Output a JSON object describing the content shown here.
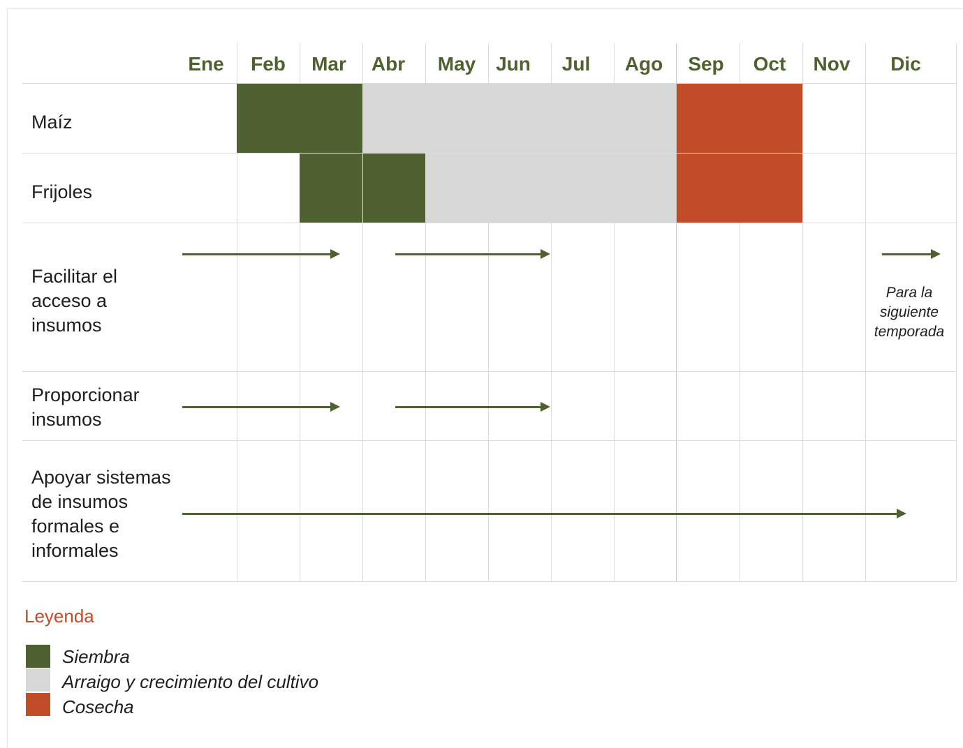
{
  "colors": {
    "siembra": "#4f6130",
    "crecimiento": "#d9d8d8",
    "cosecha": "#c04c28",
    "arrow": "#4f6130",
    "month_text": "#4f6130",
    "legend_title": "#c04c28"
  },
  "months": [
    "Ene",
    "Feb",
    "Mar",
    "Abr",
    "May",
    "Jun",
    "Jul",
    "Ago",
    "Sep",
    "Oct",
    "Nov",
    "Dic"
  ],
  "rows": [
    {
      "label": "Maíz"
    },
    {
      "label": "Frijoles"
    },
    {
      "label": "Facilitar el acceso a insumos"
    },
    {
      "label": "Proporcionar insumos"
    },
    {
      "label": "Apoyar sistemas de insumos formales e informales"
    }
  ],
  "crop_schedule": {
    "maiz": {
      "siembra": [
        "Feb",
        "Mar"
      ],
      "crecimiento": [
        "Abr",
        "May",
        "Jun",
        "Jul",
        "Ago"
      ],
      "cosecha": [
        "Sep",
        "Oct"
      ]
    },
    "frijoles": {
      "siembra": [
        "Mar",
        "Abr"
      ],
      "crecimiento": [
        "May",
        "Jun",
        "Jul",
        "Ago"
      ],
      "cosecha": [
        "Sep",
        "Oct"
      ]
    }
  },
  "note": "Para la siguiente temporada",
  "legend": {
    "title": "Leyenda",
    "items": [
      {
        "label": "Siembra",
        "color": "#4f6130"
      },
      {
        "label": "Arraigo y crecimiento del cultivo",
        "color": "#d9d8d8"
      },
      {
        "label": "Cosecha",
        "color": "#c04c28"
      }
    ]
  }
}
